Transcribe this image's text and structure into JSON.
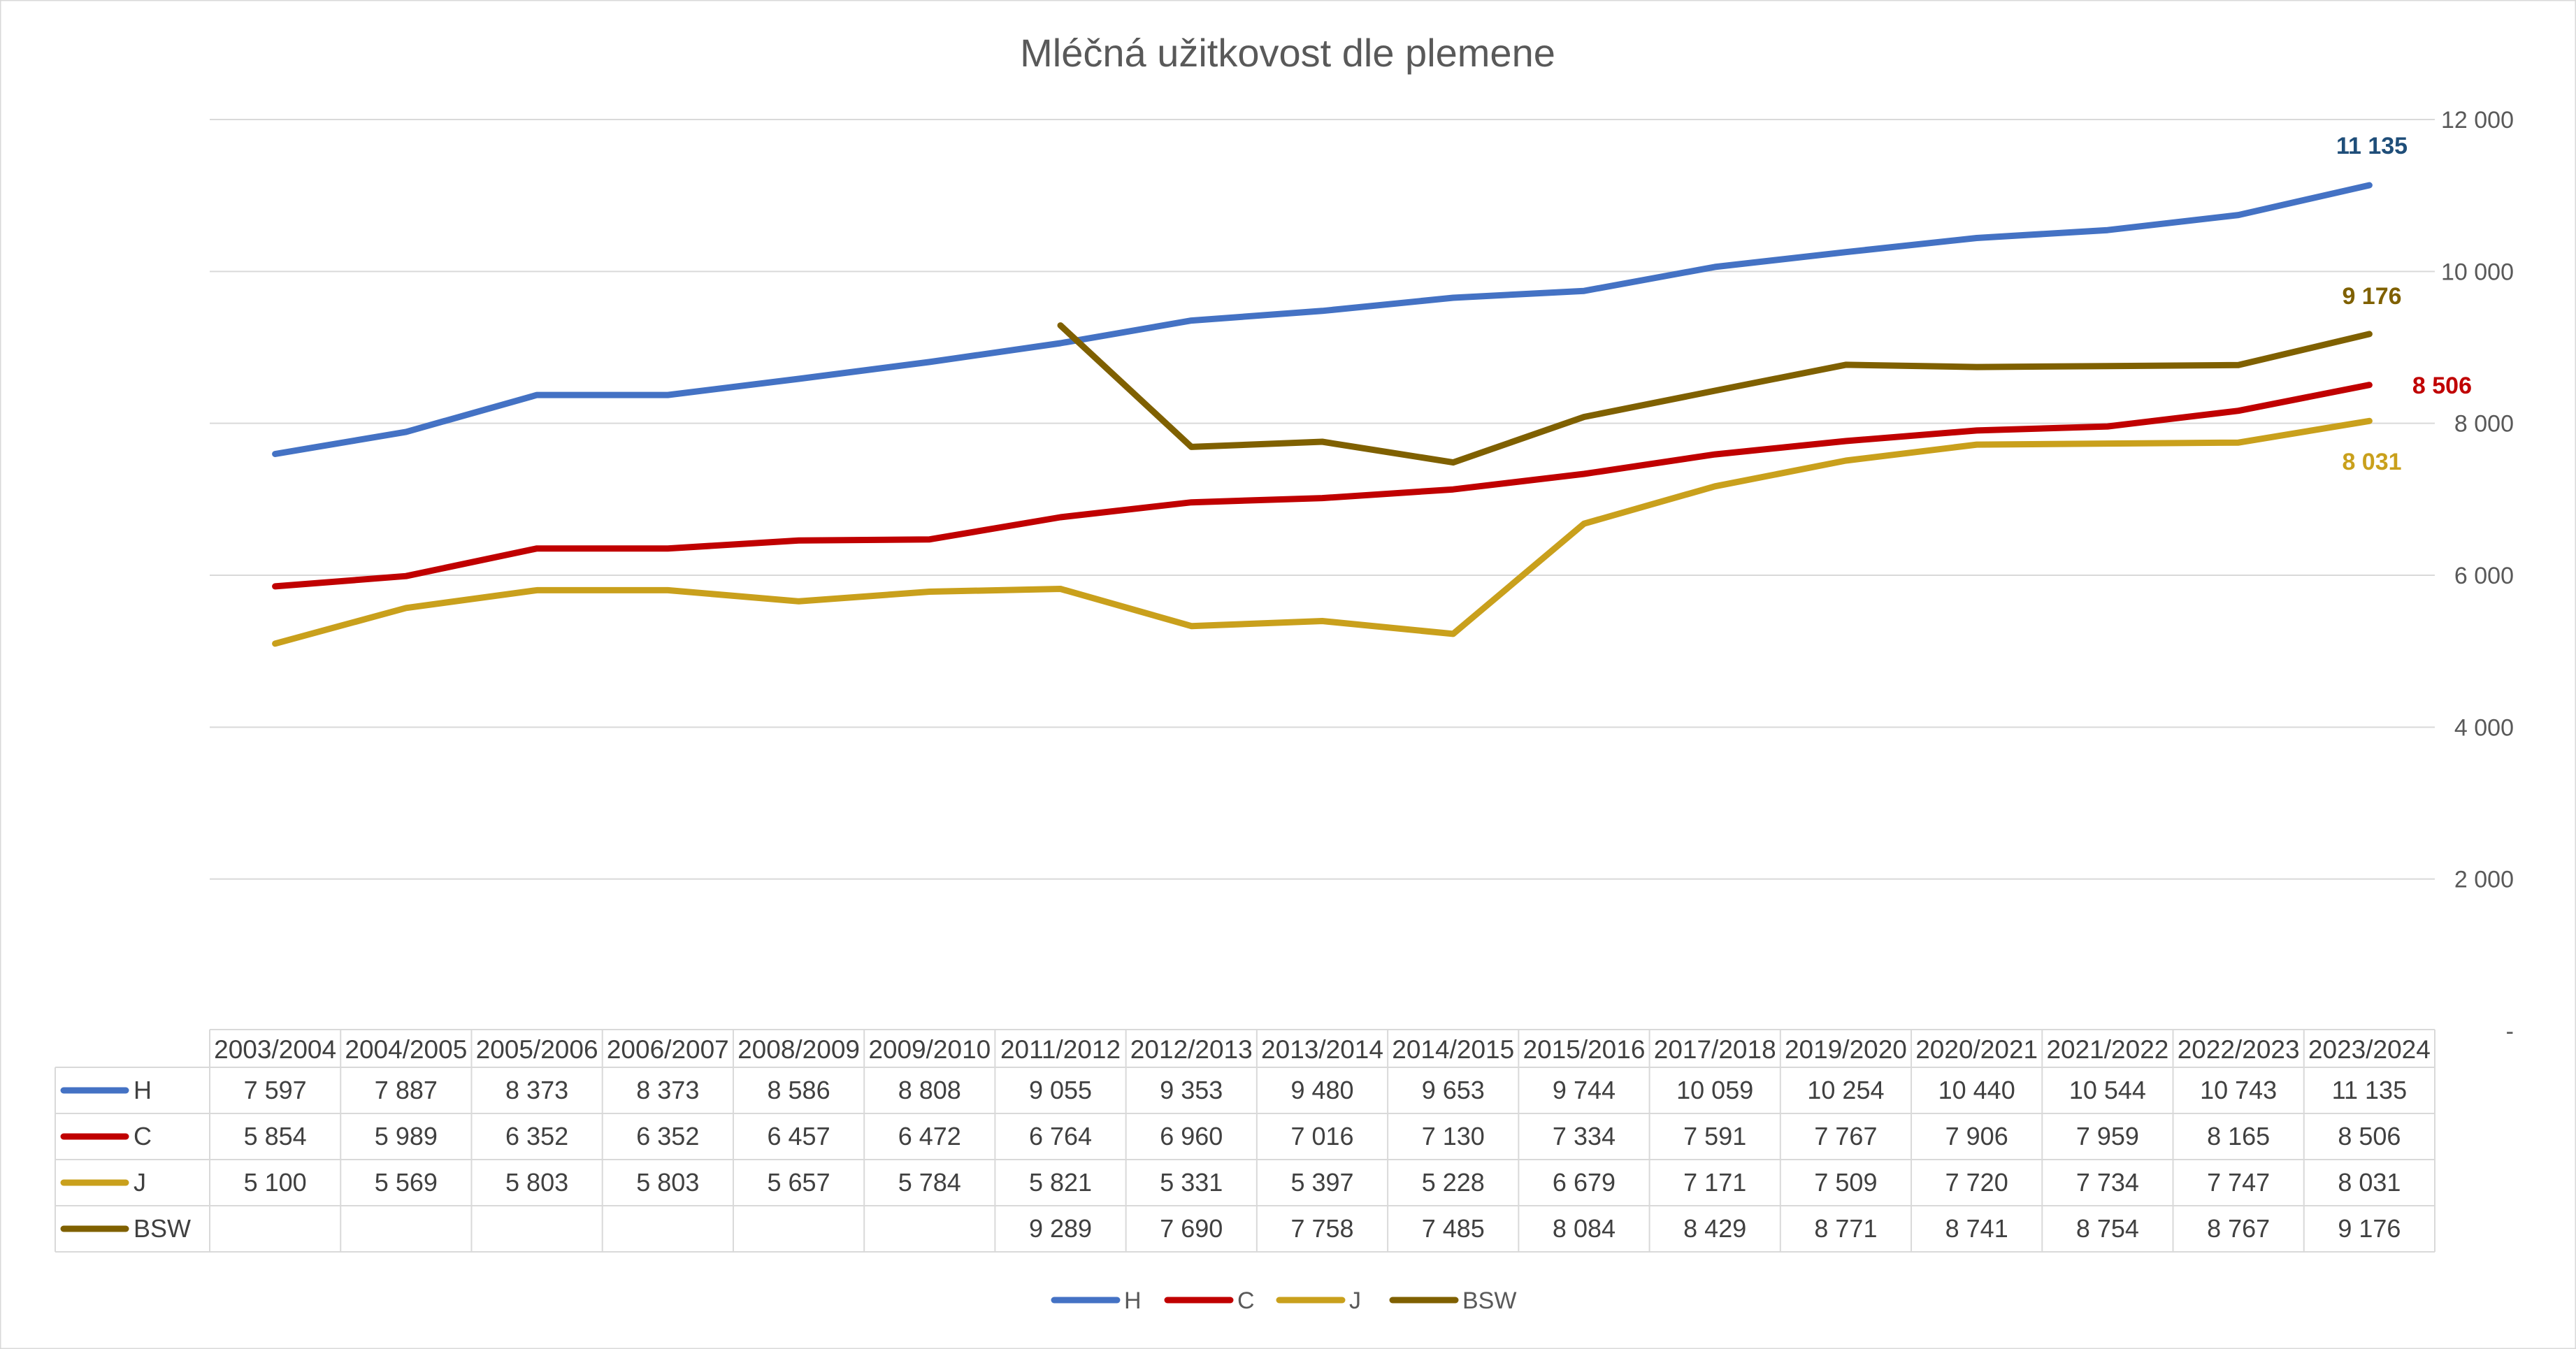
{
  "chart_data": {
    "type": "line",
    "title": "Mléčná užitkovost dle plemene",
    "xlabel": "",
    "ylabel": "",
    "ylim": [
      0,
      12000
    ],
    "y_ticks": [
      "-",
      "2 000",
      "4 000",
      "6 000",
      "8 000",
      "10 000",
      "12 000"
    ],
    "y_tick_values": [
      0,
      2000,
      4000,
      6000,
      8000,
      10000,
      12000
    ],
    "y_axis_position": "right",
    "grid": true,
    "legend_position": "bottom",
    "categories": [
      "2003/2004",
      "2004/2005",
      "2005/2006",
      "2006/2007",
      "2008/2009",
      "2009/2010",
      "2011/2012",
      "2012/2013",
      "2013/2014",
      "2014/2015",
      "2015/2016",
      "2017/2018",
      "2019/2020",
      "2020/2021",
      "2021/2022",
      "2022/2023",
      "2023/2024"
    ],
    "series": [
      {
        "name": "H",
        "color": "#4472C4",
        "values": [
          7597,
          7887,
          8373,
          8373,
          8586,
          8808,
          9055,
          9353,
          9480,
          9653,
          9744,
          10059,
          10254,
          10440,
          10544,
          10743,
          11135
        ],
        "labels": [
          "7 597",
          "7 887",
          "8 373",
          "8 373",
          "8 586",
          "8 808",
          "9 055",
          "9 353",
          "9 480",
          "9 653",
          "9 744",
          "10 059",
          "10 254",
          "10 440",
          "10 544",
          "10 743",
          "11 135"
        ],
        "end_label": "11 135",
        "end_label_color": "#1F4E79"
      },
      {
        "name": "C",
        "color": "#C00000",
        "values": [
          5854,
          5989,
          6352,
          6352,
          6457,
          6472,
          6764,
          6960,
          7016,
          7130,
          7334,
          7591,
          7767,
          7906,
          7959,
          8165,
          8506
        ],
        "labels": [
          "5 854",
          "5 989",
          "6 352",
          "6 352",
          "6 457",
          "6 472",
          "6 764",
          "6 960",
          "7 016",
          "7 130",
          "7 334",
          "7 591",
          "7 767",
          "7 906",
          "7 959",
          "8 165",
          "8 506"
        ],
        "end_label": "8 506",
        "end_label_color": "#C00000"
      },
      {
        "name": "J",
        "color": "#C9A01C",
        "values": [
          5100,
          5569,
          5803,
          5803,
          5657,
          5784,
          5821,
          5331,
          5397,
          5228,
          6679,
          7171,
          7509,
          7720,
          7734,
          7747,
          8031
        ],
        "labels": [
          "5 100",
          "5 569",
          "5 803",
          "5 803",
          "5 657",
          "5 784",
          "5 821",
          "5 331",
          "5 397",
          "5 228",
          "6 679",
          "7 171",
          "7 509",
          "7 720",
          "7 734",
          "7 747",
          "8 031"
        ],
        "end_label": "8 031",
        "end_label_color": "#C9A01C"
      },
      {
        "name": "BSW",
        "color": "#7F6000",
        "values": [
          null,
          null,
          null,
          null,
          null,
          null,
          9289,
          7690,
          7758,
          7485,
          8084,
          8429,
          8771,
          8741,
          8754,
          8767,
          9176
        ],
        "labels": [
          "",
          "",
          "",
          "",
          "",
          "",
          "9 289",
          "7 690",
          "7 758",
          "7 485",
          "8 084",
          "8 429",
          "8 771",
          "8 741",
          "8 754",
          "8 767",
          "9 176"
        ],
        "end_label": "9 176",
        "end_label_color": "#7F6000"
      }
    ]
  }
}
